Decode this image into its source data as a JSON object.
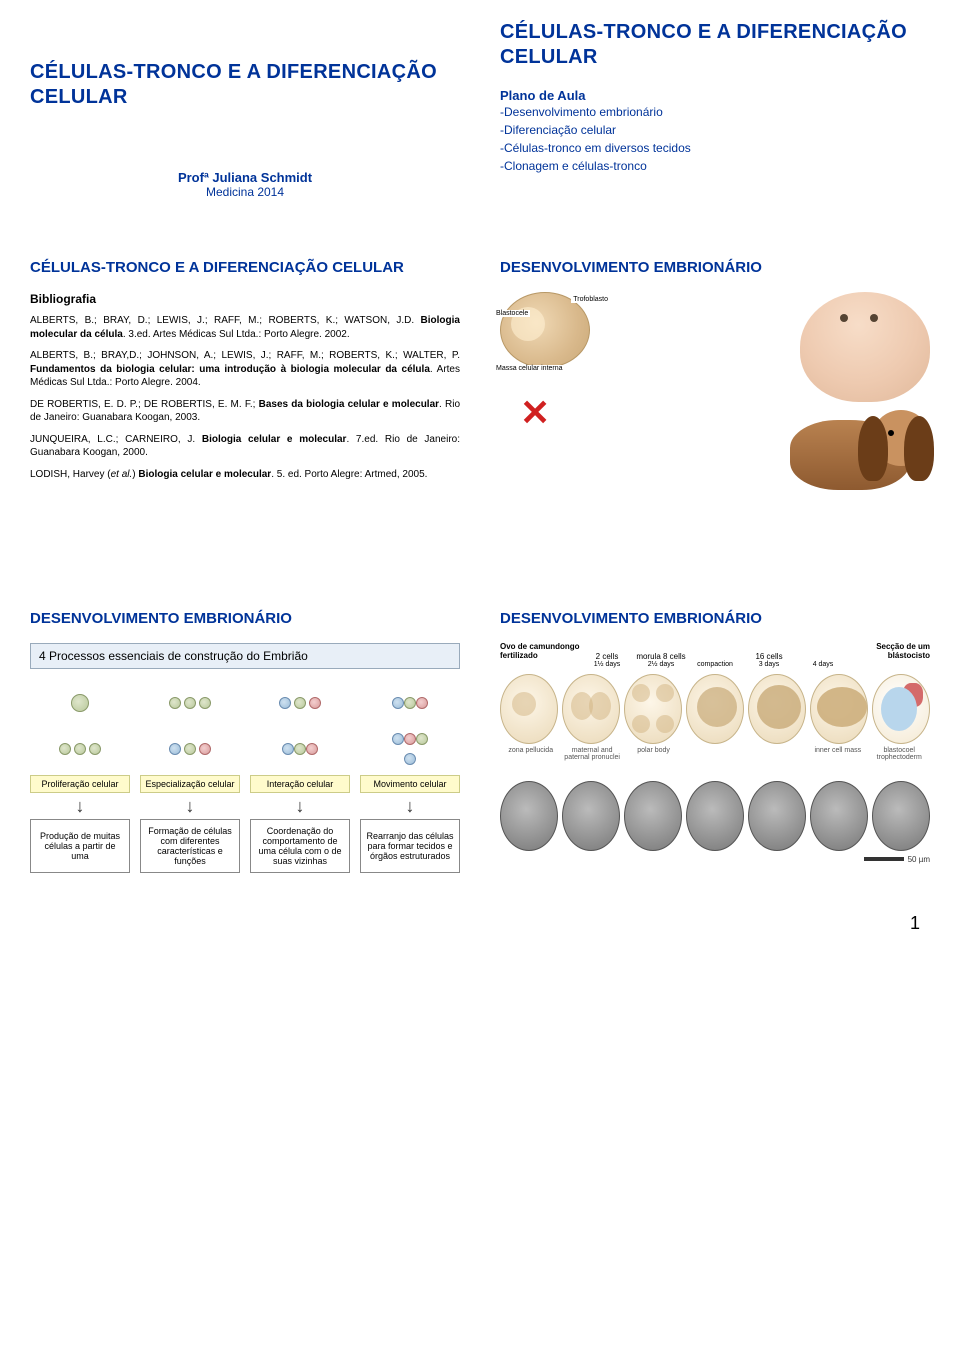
{
  "slide1": {
    "title": "CÉLULAS-TRONCO E A DIFERENCIAÇÃO CELULAR",
    "author": "Profª Juliana Schmidt",
    "course": "Medicina 2014"
  },
  "slide2": {
    "title": "CÉLULAS-TRONCO E A DIFERENCIAÇÃO CELULAR",
    "plano_title": "Plano de Aula",
    "items": [
      "-Desenvolvimento embrionário",
      "-Diferenciação celular",
      "-Células-tronco em diversos tecidos",
      "-Clonagem e células-tronco"
    ]
  },
  "slide3": {
    "title": "CÉLULAS-TRONCO E A DIFERENCIAÇÃO CELULAR",
    "bib_title": "Bibliografia",
    "refs": [
      "ALBERTS, B.; BRAY, D.; LEWIS, J.; RAFF, M.; ROBERTS, K.; WATSON, J.D. <b>Biologia molecular da célula</b>. 3.ed. Artes Médicas Sul Ltda.: Porto Alegre. 2002.",
      "ALBERTS, B.; BRAY,D.; JOHNSON, A.; LEWIS, J.; RAFF, M.; ROBERTS, K.; WALTER, P. <b>Fundamentos da biologia celular: uma introdução à biologia molecular da célula</b>. Artes Médicas Sul Ltda.: Porto Alegre. 2004.",
      "DE ROBERTIS, E. D. P.; DE ROBERTIS, E. M. F.; <b>Bases da biologia celular e molecular</b>. Rio de Janeiro: Guanabara Koogan, 2003.",
      "JUNQUEIRA, L.C.; CARNEIRO, J. <b>Biologia celular e molecular</b>. 7.ed. Rio de Janeiro: Guanabara Koogan, 2000.",
      "LODISH, Harvey (<i>et al.</i>) <b>Biologia celular e molecular</b>. 5. ed. Porto Alegre: Artmed, 2005."
    ]
  },
  "slide4": {
    "title": "DESENVOLVIMENTO EMBRIONÁRIO",
    "labels": {
      "blastocele": "Blastocele",
      "trofoblasto": "Trofoblasto",
      "massa": "Massa celular interna"
    }
  },
  "slide5": {
    "title": "DESENVOLVIMENTO EMBRIONÁRIO",
    "header": "4 Processos essenciais de construção do Embrião",
    "cols": [
      {
        "label": "Proliferação celular",
        "desc": "Produção de muitas células a partir de uma"
      },
      {
        "label": "Especialização celular",
        "desc": "Formação de células com diferentes características e funções"
      },
      {
        "label": "Interação celular",
        "desc": "Coordenação do comportamento de uma célula com o de suas vizinhas"
      },
      {
        "label": "Movimento celular",
        "desc": "Rearranjo das células para formar tecidos e órgãos estruturados"
      }
    ]
  },
  "slide6": {
    "title": "DESENVOLVIMENTO EMBRIONÁRIO",
    "left_label": "Ovo de camundongo fertilizado",
    "right_label": "Secção de um blástocisto",
    "stages": [
      {
        "top": "2 cells",
        "bottom": "1½ days"
      },
      {
        "top": "morula 8 cells",
        "bottom": "2½ days"
      },
      {
        "top": "",
        "bottom": "compaction"
      },
      {
        "top": "16 cells",
        "bottom": "3 days"
      },
      {
        "top": "",
        "bottom": "4 days"
      }
    ],
    "bottom_labels": [
      "zona pellucida",
      "maternal and paternal pronuclei",
      "polar body",
      "",
      "",
      "inner cell mass",
      "blastocoel trophectoderm"
    ],
    "scale": "50 µm"
  },
  "page_number": "1"
}
